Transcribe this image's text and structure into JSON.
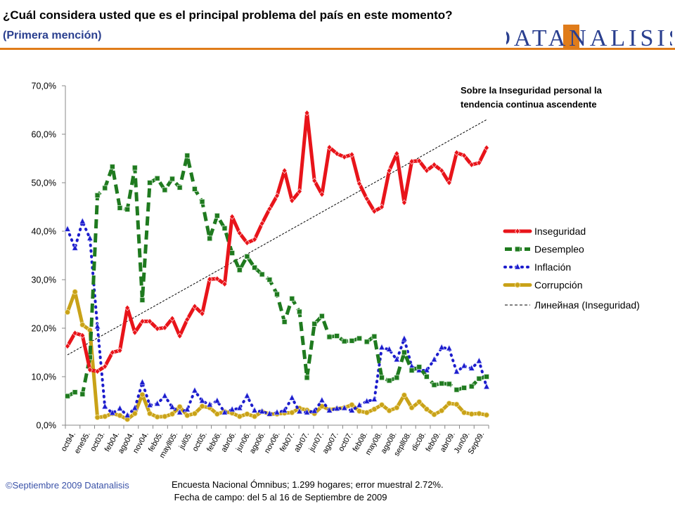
{
  "header": {
    "title": "¿Cuál considera usted que es el principal problema del país en este momento?",
    "subtitle": "(Primera mención)",
    "logo_text": "DATANALISIS"
  },
  "footer": {
    "copyright": "©Septiembre 2009  Datanalisis",
    "note_line1": "Encuesta Nacional Ómnibus; 1.299 hogares; error muestral 2.72%.",
    "note_line2": " Fecha de campo: del 5 al 16 de Septiembre de 2009"
  },
  "colors": {
    "inseguridad": "#e8141a",
    "desempleo": "#1f7a1f",
    "inflacion": "#1c1ccc",
    "corrupcion": "#c9a218",
    "trendline": "#000000",
    "header_rule": "#e07c1a",
    "subtitle": "#2a3f8f"
  },
  "chart_data": {
    "type": "line",
    "annotation": "Sobre la Inseguridad personal la tendencia continua ascendente",
    "ylim": [
      0,
      70
    ],
    "yticks": [
      "0,0%",
      "10,0%",
      "20,0%",
      "30,0%",
      "40,0%",
      "50,0%",
      "60,0%",
      "70,0%"
    ],
    "x_tick_labels": [
      "oct94.",
      "ene95.",
      "oct03.",
      "feb04.",
      "ago04.",
      "nov04.",
      "feb05.",
      "mayll05.",
      "jul05.",
      "oct05.",
      "feb06.",
      "abr06.",
      "jun06.",
      "ago06.",
      "nov06.",
      "feb07.",
      "abr07.",
      "jun07.",
      "ago07.",
      "oct07.",
      "feb08.",
      "may08.",
      "ago08.",
      "sepll08.",
      "dic08.",
      "feb09.",
      "abr09.",
      "Jun09.",
      "Sep09."
    ],
    "grid": false,
    "legend_position": "right",
    "legend": {
      "trend_label": "Линейная (Inseguridad)"
    },
    "trendline": {
      "series": "Inseguridad",
      "type": "linear",
      "start": 14.5,
      "end": 63.0
    },
    "series": [
      {
        "name": "Inseguridad",
        "color_key": "inseguridad",
        "style": "solid",
        "marker": "diamond",
        "values": [
          16.3,
          19.0,
          18.5,
          11.4,
          11.1,
          12.1,
          15.0,
          15.4,
          24.2,
          19.1,
          21.4,
          21.4,
          19.9,
          20.1,
          22.0,
          18.4,
          21.8,
          24.5,
          23.0,
          30.1,
          30.2,
          29.1,
          43.0,
          39.6,
          37.6,
          38.3,
          41.6,
          44.6,
          47.3,
          52.5,
          46.3,
          48.2,
          64.4,
          50.4,
          47.6,
          57.3,
          56.0,
          55.3,
          55.8,
          49.8,
          46.7,
          44.1,
          45.0,
          52.5,
          56.0,
          45.9,
          54.4,
          54.5,
          52.5,
          53.7,
          52.5,
          50.0,
          56.2,
          55.6,
          53.7,
          54.1,
          57.2
        ]
      },
      {
        "name": "Desempleo",
        "color_key": "desempleo",
        "style": "dash",
        "marker": "square",
        "values": [
          6.0,
          6.8,
          6.4,
          14.0,
          47.4,
          48.9,
          53.3,
          44.8,
          44.5,
          53.1,
          25.8,
          50.0,
          50.9,
          48.5,
          50.8,
          49.0,
          55.6,
          48.7,
          46.1,
          38.5,
          43.2,
          40.6,
          35.5,
          32.0,
          34.8,
          32.5,
          31.1,
          30.0,
          27.0,
          21.3,
          26.1,
          23.4,
          9.8,
          20.9,
          22.5,
          18.2,
          18.4,
          17.3,
          17.4,
          17.9,
          17.2,
          18.3,
          9.8,
          9.2,
          9.8,
          15.0,
          11.3,
          12.0,
          10.0,
          8.3,
          8.6,
          8.5,
          7.3,
          7.7,
          8.0,
          9.6,
          10.0
        ]
      },
      {
        "name": "Inflación",
        "color_key": "inflacion",
        "style": "dot",
        "marker": "triangle",
        "values": [
          40.4,
          36.5,
          42.0,
          38.5,
          20.3,
          3.8,
          2.5,
          3.4,
          2.0,
          3.5,
          8.8,
          4.1,
          4.4,
          6.0,
          3.7,
          2.6,
          3.2,
          7.1,
          5.0,
          4.2,
          5.0,
          2.6,
          3.2,
          3.5,
          6.0,
          3.0,
          2.8,
          2.3,
          2.6,
          3.0,
          5.6,
          2.8,
          2.6,
          2.9,
          5.1,
          3.0,
          3.4,
          3.5,
          3.0,
          4.1,
          4.9,
          5.3,
          16.0,
          15.6,
          13.5,
          17.8,
          12.1,
          11.3,
          11.3,
          13.5,
          16.0,
          15.8,
          11.0,
          12.2,
          11.7,
          13.2,
          7.9
        ]
      },
      {
        "name": "Corrupción",
        "color_key": "corrupcion",
        "style": "solid",
        "marker": "circle",
        "values": [
          23.3,
          27.5,
          20.7,
          19.6,
          1.6,
          1.8,
          2.4,
          2.0,
          1.2,
          2.4,
          6.3,
          2.4,
          1.7,
          1.8,
          2.3,
          3.8,
          2.0,
          2.4,
          3.9,
          3.6,
          2.3,
          2.8,
          2.5,
          1.8,
          2.3,
          1.8,
          2.8,
          2.3,
          2.3,
          2.5,
          2.6,
          3.5,
          3.1,
          2.4,
          3.9,
          3.2,
          3.4,
          3.6,
          4.2,
          2.9,
          2.6,
          3.3,
          4.2,
          3.0,
          3.6,
          6.2,
          3.6,
          4.8,
          3.3,
          2.2,
          3.0,
          4.5,
          4.3,
          2.6,
          2.3,
          2.4,
          2.1
        ]
      }
    ]
  }
}
